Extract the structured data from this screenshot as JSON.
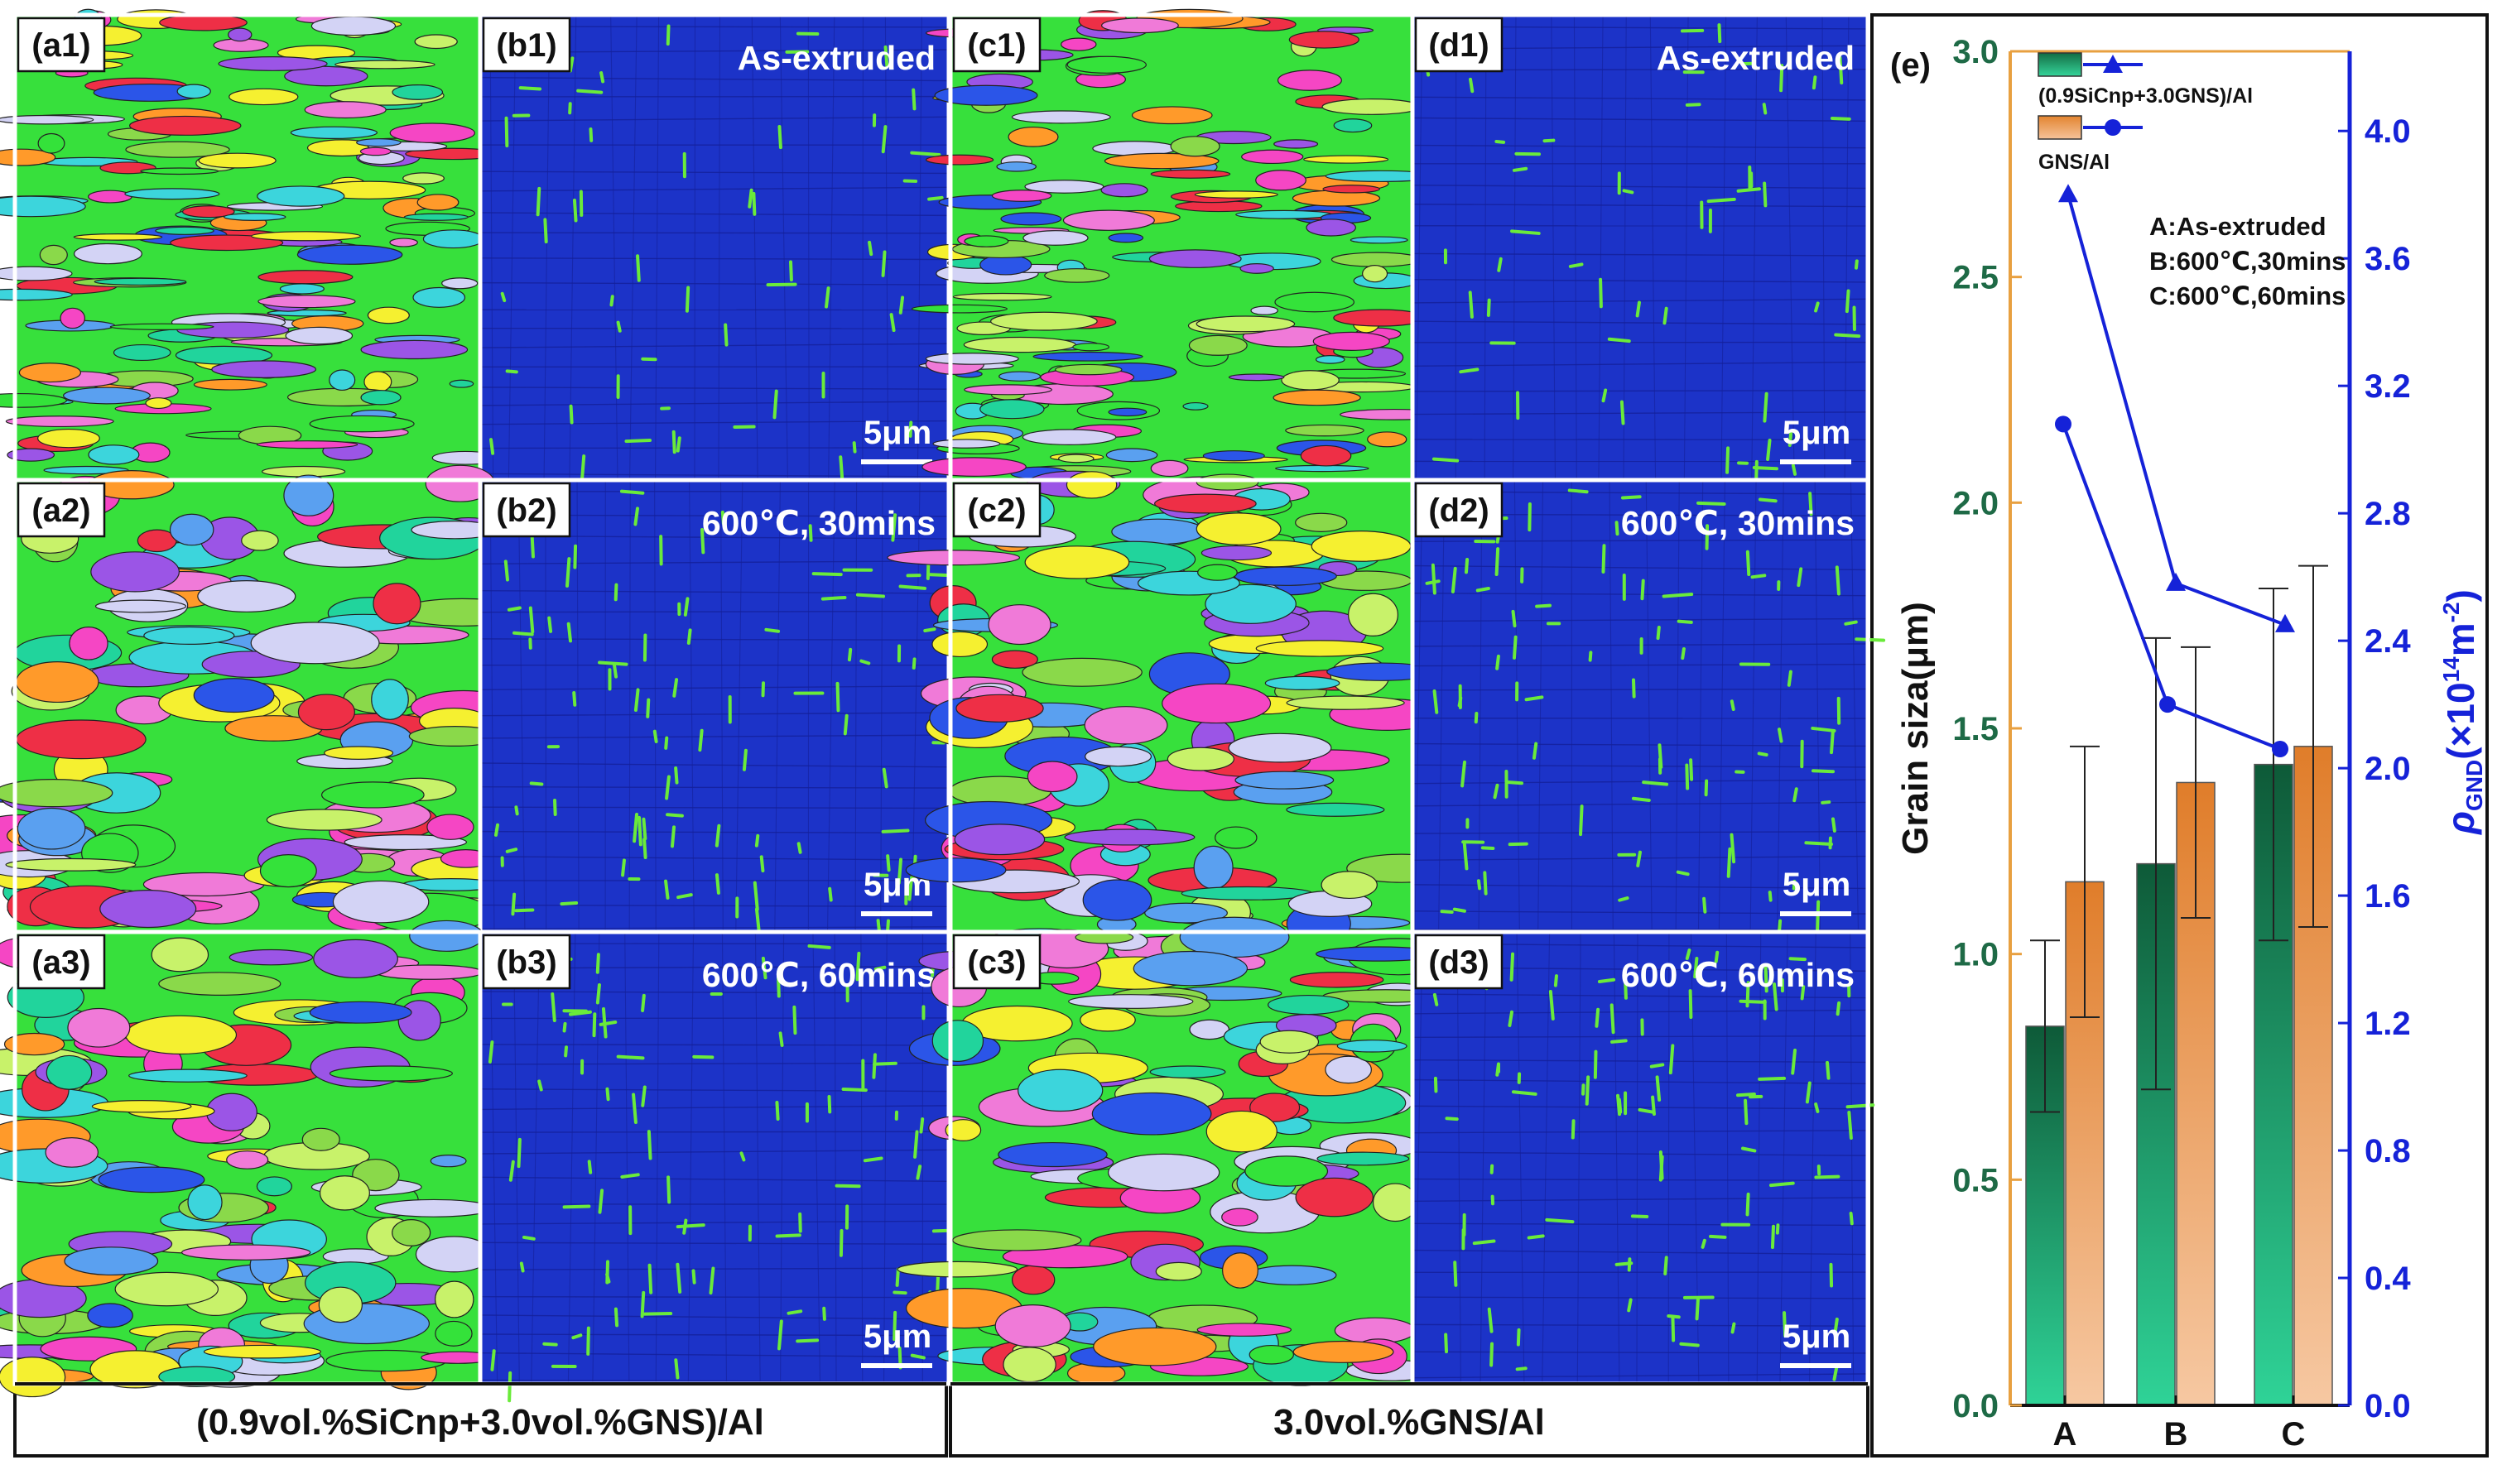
{
  "colors": {
    "composite_bar": "#1f9a6a",
    "gns_bar": "#e8954a",
    "rho_line": "#1522d8",
    "left_axis": "#1e6a46",
    "left_spine": "#e8a040",
    "right_axis": "#1522d8",
    "separator": "#ffffff",
    "kam_background": "#1c33c8",
    "kam_boundary": "#6aeb3a"
  },
  "panels": [
    {
      "id": "a1",
      "label": "(a1)",
      "kind": "ipf",
      "caption": "",
      "scale": ""
    },
    {
      "id": "b1",
      "label": "(b1)",
      "kind": "kam",
      "caption": "As-extruded",
      "scale": "5μm"
    },
    {
      "id": "c1",
      "label": "(c1)",
      "kind": "ipf",
      "caption": "",
      "scale": ""
    },
    {
      "id": "d1",
      "label": "(d1)",
      "kind": "kam",
      "caption": "As-extruded",
      "scale": "5μm"
    },
    {
      "id": "a2",
      "label": "(a2)",
      "kind": "ipf",
      "caption": "",
      "scale": ""
    },
    {
      "id": "b2",
      "label": "(b2)",
      "kind": "kam",
      "caption": "600℃, 30mins",
      "scale": "5μm"
    },
    {
      "id": "c2",
      "label": "(c2)",
      "kind": "ipf",
      "caption": "",
      "scale": ""
    },
    {
      "id": "d2",
      "label": "(d2)",
      "kind": "kam",
      "caption": "600℃, 30mins",
      "scale": "5μm"
    },
    {
      "id": "a3",
      "label": "(a3)",
      "kind": "ipf",
      "caption": "",
      "scale": ""
    },
    {
      "id": "b3",
      "label": "(b3)",
      "kind": "kam",
      "caption": "600℃, 60mins",
      "scale": "5μm"
    },
    {
      "id": "c3",
      "label": "(c3)",
      "kind": "ipf",
      "caption": "",
      "scale": ""
    },
    {
      "id": "d3",
      "label": "(d3)",
      "kind": "kam",
      "caption": "600℃, 60mins",
      "scale": "5μm"
    }
  ],
  "group_labels": [
    "(0.9vol.%SiCnp+3.0vol.%GNS)/Al",
    "3.0vol.%GNS/Al"
  ],
  "chart_data": {
    "type": "bar",
    "panel_label": "(e)",
    "categories": [
      "A",
      "B",
      "C"
    ],
    "ylabel": "Grain siza(μm)",
    "ylim": [
      0,
      3.0
    ],
    "yticks": [
      "0.0",
      "0.5",
      "1.0",
      "1.5",
      "2.0",
      "2.5",
      "3.0"
    ],
    "y2label_main": "ρ",
    "y2label_sub": "GND",
    "y2label_unit": "(×10",
    "y2label_exp": "14",
    "y2label_tail": "m",
    "y2label_exp2": "-2",
    "y2label_close": ")",
    "y2lim": [
      0,
      4.25
    ],
    "y2ticks": [
      "0.0",
      "0.4",
      "0.8",
      "1.2",
      "1.6",
      "2.0",
      "2.4",
      "2.8",
      "3.2",
      "3.6",
      "4.0"
    ],
    "series": [
      {
        "name": "(0.9SiCnp+3.0GNS)/Al",
        "values": [
          0.84,
          1.2,
          1.42
        ],
        "errors": [
          0.19,
          0.5,
          0.39
        ],
        "rho": [
          3.8,
          2.58,
          2.45
        ]
      },
      {
        "name": "GNS/Al",
        "values": [
          1.16,
          1.38,
          1.46
        ],
        "errors": [
          0.3,
          0.3,
          0.4
        ],
        "rho": [
          3.08,
          2.2,
          2.06
        ]
      }
    ],
    "annotations": [
      "A:As-extruded",
      "B:600℃,30mins",
      "C:600℃,60mins"
    ]
  }
}
